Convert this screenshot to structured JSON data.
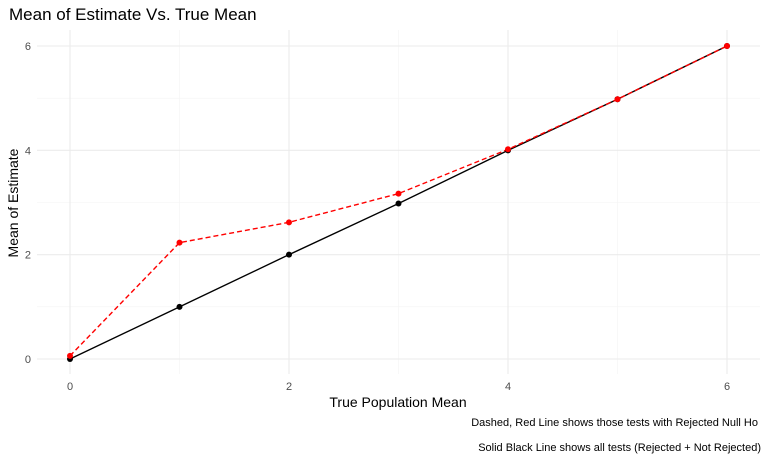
{
  "chart_data": {
    "type": "line",
    "title": "Mean of Estimate Vs. True Mean",
    "xlabel": "True Population Mean",
    "ylabel": "Mean of Estimate",
    "xlim": [
      0,
      6
    ],
    "ylim": [
      0,
      6
    ],
    "x_ticks": [
      0,
      2,
      4,
      6
    ],
    "y_ticks": [
      0,
      2,
      4,
      6
    ],
    "grid": true,
    "captions": [
      "Dashed, Red Line shows those tests with Rejected Null Ho",
      "Solid Black Line shows all tests (Rejected + Not Rejected)"
    ],
    "series": [
      {
        "style": "solid",
        "color": "#000000",
        "x": [
          0,
          1,
          2,
          3,
          4,
          5,
          6
        ],
        "values": [
          0.0,
          1.0,
          2.0,
          2.98,
          4.0,
          4.98,
          6.0
        ]
      },
      {
        "style": "dashed",
        "color": "#ff0000",
        "x": [
          0,
          1,
          2,
          3,
          4,
          5,
          6
        ],
        "values": [
          0.06,
          2.23,
          2.62,
          3.17,
          4.02,
          4.98,
          6.0
        ]
      }
    ]
  }
}
